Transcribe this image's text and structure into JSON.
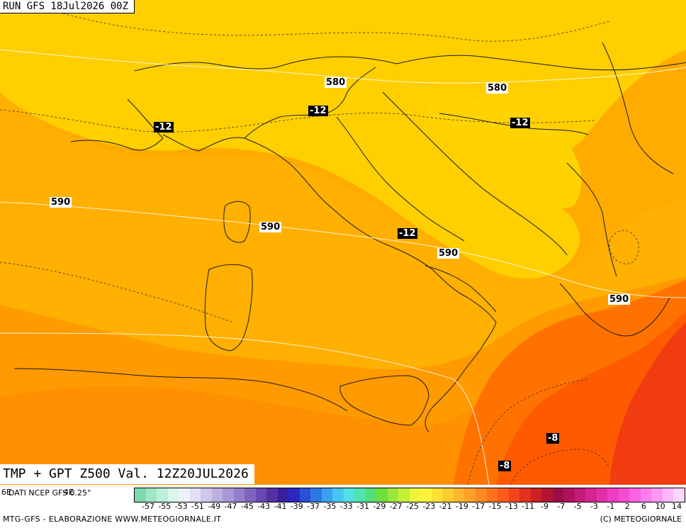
{
  "header": {
    "run_label": "RUN GFS 18Jul2026 00Z"
  },
  "footer": {
    "valid_label": "TMP + GPT Z500 Val. 12Z20JUL2026",
    "source_label": "DATI NCEP GFS 0.25°",
    "credit_left": "MTG-GFS - ELABORAZIONE WWW.METEOGIORNALE.IT",
    "credit_right": "(C) METEOGIORNALE",
    "legend_left_glyph": "6E",
    "legend_mid_glyph": "4E"
  },
  "gpt_labels": [
    "580",
    "580",
    "590",
    "590",
    "590",
    "590"
  ],
  "tmp_labels": [
    "-12",
    "-12",
    "-12",
    "-12",
    "-8",
    "-8"
  ],
  "legend": {
    "ticks": [
      "-57",
      "-55",
      "-53",
      "-51",
      "-49",
      "-47",
      "-45",
      "-43",
      "-41",
      "-39",
      "-37",
      "-35",
      "-33",
      "-31",
      "-29",
      "-27",
      "-25",
      "-23",
      "-21",
      "-19",
      "-17",
      "-15",
      "-13",
      "-11",
      "-9",
      "-7",
      "-5",
      "-3",
      "-1",
      "2",
      "6",
      "10",
      "14"
    ],
    "colors": [
      "#7fd9b0",
      "#9ee5c4",
      "#bcefd9",
      "#d8f7ea",
      "#eef2fa",
      "#dfe0f3",
      "#cdc8ea",
      "#bbb0e0",
      "#a897d6",
      "#957ecb",
      "#7f63bf",
      "#6a48b2",
      "#5431a3",
      "#3a1fa0",
      "#2a28c0",
      "#2b4fd6",
      "#2f77e6",
      "#3aa0ef",
      "#45c6f2",
      "#52e0e0",
      "#4fe3b0",
      "#52df7a",
      "#6fdf3d",
      "#9be63a",
      "#c6ef38",
      "#eef53a",
      "#fff23d",
      "#ffe135",
      "#ffcc30",
      "#ffb62b",
      "#ffa126",
      "#ff8a22",
      "#ff721e",
      "#ff5a1c",
      "#f5431d",
      "#e0301f",
      "#cc2024",
      "#b41432",
      "#9a0e47",
      "#b0125d",
      "#c41a78",
      "#d6238f",
      "#e32fa6",
      "#ee3cbf",
      "#f64cd3",
      "#fb62e2",
      "#ff7bee",
      "#ff98f5",
      "#ffb8fa",
      "#ffd6fd"
    ]
  },
  "map_colors": {
    "land_yellow": "#ffd000",
    "light_orange": "#ffb400",
    "orange": "#ff9c00",
    "deep_orange": "#ff7a00",
    "red_orange": "#ff5500",
    "red": "#f23a10"
  }
}
